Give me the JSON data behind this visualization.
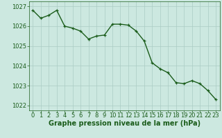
{
  "x": [
    0,
    1,
    2,
    3,
    4,
    5,
    6,
    7,
    8,
    9,
    10,
    11,
    12,
    13,
    14,
    15,
    16,
    17,
    18,
    19,
    20,
    21,
    22,
    23
  ],
  "y": [
    1026.8,
    1026.4,
    1026.55,
    1026.8,
    1026.0,
    1025.9,
    1025.75,
    1025.35,
    1025.5,
    1025.55,
    1026.1,
    1026.1,
    1026.05,
    1025.75,
    1025.25,
    1024.15,
    1023.85,
    1023.65,
    1023.15,
    1023.1,
    1023.25,
    1023.1,
    1022.75,
    1022.3
  ],
  "line_color": "#1a5c1a",
  "marker_color": "#1a5c1a",
  "bg_color": "#cce8e0",
  "grid_color": "#aaccc4",
  "axis_label_color": "#1a5c1a",
  "tick_label_color": "#1a5c1a",
  "xlabel": "Graphe pression niveau de la mer (hPa)",
  "ylim": [
    1021.75,
    1027.25
  ],
  "xlim": [
    -0.5,
    23.5
  ],
  "yticks": [
    1022,
    1023,
    1024,
    1025,
    1026,
    1027
  ],
  "xticks": [
    0,
    1,
    2,
    3,
    4,
    5,
    6,
    7,
    8,
    9,
    10,
    11,
    12,
    13,
    14,
    15,
    16,
    17,
    18,
    19,
    20,
    21,
    22,
    23
  ],
  "xlabel_fontsize": 7.0,
  "tick_fontsize": 6.0,
  "marker_size": 3.5,
  "line_width": 1.0
}
